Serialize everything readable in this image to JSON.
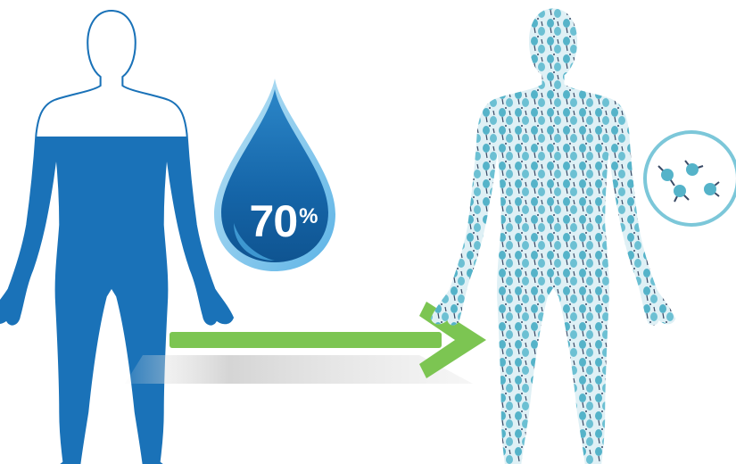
{
  "water_percentage": {
    "value": "70",
    "unit": "%"
  },
  "colors": {
    "body_water": "#1a72b8",
    "body_outline": "#1a72b8",
    "drop_dark": "#1565a8",
    "drop_light": "#5cb3e6",
    "arrow": "#7cc552",
    "molecule": "#55b3c9",
    "molecule_bond": "#3a4a66",
    "circle_border": "#7cc7d9"
  },
  "icons": {
    "left_figure": "human-silhouette-water-level-icon",
    "drop": "water-drop-icon",
    "arrow": "right-arrow-icon",
    "right_figure": "human-silhouette-molecules-icon",
    "molecule_zoom": "molecule-circle-icon"
  }
}
